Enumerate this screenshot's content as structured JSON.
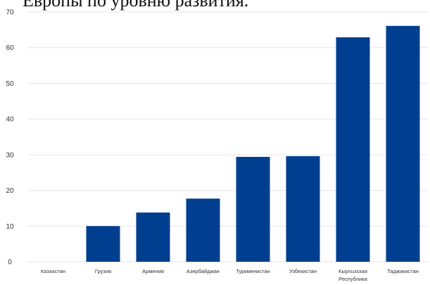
{
  "title_fragment": "Европы по уровню развития.",
  "chart_data": {
    "type": "bar",
    "categories": [
      "Казахстан",
      "Грузия",
      "Армения",
      "Азербайджан",
      "Туркменистан",
      "Узбекистан",
      "Кыргызская Республика",
      "Таджикистан"
    ],
    "category_lines": [
      [
        "Казахстан"
      ],
      [
        "Грузия"
      ],
      [
        "Армения"
      ],
      [
        "Азербайджан"
      ],
      [
        "Туркменистан"
      ],
      [
        "Узбекистан"
      ],
      [
        "Кыргызская",
        "Республика"
      ],
      [
        "Таджикистан"
      ]
    ],
    "values": [
      0,
      10,
      13.8,
      17.7,
      29.4,
      29.6,
      62.9,
      66.1
    ],
    "ylim": [
      0,
      70
    ],
    "yticks": [
      0,
      10,
      20,
      30,
      40,
      50,
      60,
      70
    ],
    "grid": true,
    "bar_color": "#003f8f",
    "grid_color": "#e6e6e6"
  }
}
